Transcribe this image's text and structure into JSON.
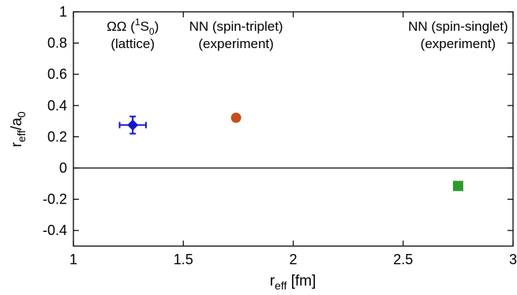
{
  "chart_data": {
    "type": "scatter",
    "xlabel": {
      "main": "r",
      "sub": "eff",
      "suffix": " [fm]"
    },
    "ylabel": {
      "main": "r",
      "sub": "eff",
      "mid": "/a",
      "sub2": "0"
    },
    "xlim": [
      1,
      3
    ],
    "ylim": [
      -0.5,
      1
    ],
    "xticks": [
      1,
      1.5,
      2,
      2.5,
      3
    ],
    "xtick_labels": [
      "1",
      "1.5",
      "2",
      "2.5",
      "3"
    ],
    "yticks": [
      -0.4,
      -0.2,
      0,
      0.2,
      0.4,
      0.6,
      0.8,
      1
    ],
    "ytick_labels": [
      "-0.4",
      "-0.2",
      "0",
      "0.2",
      "0.4",
      "0.6",
      "0.8",
      "1"
    ],
    "zero_line": true,
    "grid": false,
    "series": [
      {
        "x": 1.27,
        "y": 0.275,
        "xerr": 0.06,
        "yerr": 0.055,
        "marker": "diamond",
        "color": "#1515cc"
      },
      {
        "x": 1.74,
        "y": 0.322,
        "marker": "circle",
        "color": "#c4501c"
      },
      {
        "x": 2.75,
        "y": -0.115,
        "marker": "square",
        "color": "#2e9a2e"
      }
    ],
    "annotations": [
      {
        "x": 1.27,
        "line1": "ΩΩ (",
        "sup": "1",
        "mid": "S",
        "sub": "0",
        "tail": ")",
        "line2": "(lattice)"
      },
      {
        "x": 1.74,
        "line1": "NN (spin-triplet)",
        "line2": "(experiment)"
      },
      {
        "x": 2.75,
        "line1": "NN (spin-singlet)",
        "line2": "(experiment)"
      }
    ]
  }
}
